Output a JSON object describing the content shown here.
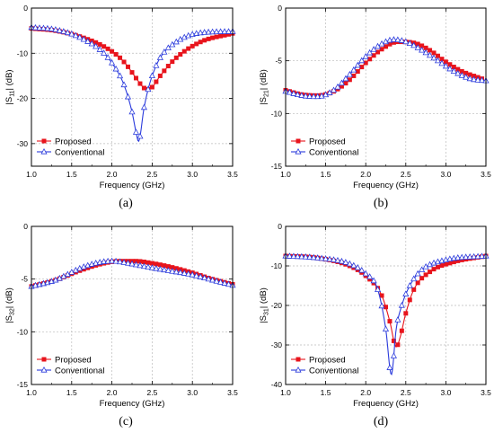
{
  "figure": {
    "panel_labels": [
      "(a)",
      "(b)",
      "(c)",
      "(d)"
    ]
  },
  "styles": {
    "proposed_color": "#e8141c",
    "conventional_color": "#2b3bdc",
    "grid_color": "#bbbbbb"
  },
  "chart_data": [
    {
      "type": "line",
      "panel": "(a)",
      "xlabel": "Frequency (GHz)",
      "ylabel_main": "|S",
      "ylabel_sub": "11",
      "ylabel_end": "| (dB)",
      "xlim": [
        1.0,
        3.5
      ],
      "ylim": [
        -35,
        0
      ],
      "xticks": [
        1.0,
        1.5,
        2.0,
        2.5,
        3.0,
        3.5
      ],
      "yticks": [
        0,
        -10,
        -20,
        -30
      ],
      "xtick_labels": [
        "1.0",
        "1.5",
        "2.0",
        "2.5",
        "3.0",
        "3.5"
      ],
      "ytick_labels": [
        "0",
        "-10",
        "-20",
        "-30"
      ],
      "grid": true,
      "legend": "bottom-left",
      "series": [
        {
          "name": "Proposed",
          "marker": "square",
          "x": [
            1.0,
            1.3,
            1.6,
            1.9,
            2.1,
            2.2,
            2.3,
            2.4,
            2.45,
            2.5,
            2.6,
            2.8,
            3.1,
            3.5
          ],
          "y": [
            -4.5,
            -5,
            -6.3,
            -8.5,
            -11,
            -13,
            -15.5,
            -17.7,
            -18,
            -17.5,
            -15,
            -11,
            -7.5,
            -5.6
          ]
        },
        {
          "name": "Conventional",
          "marker": "triangle",
          "x": [
            1.0,
            1.3,
            1.6,
            1.9,
            2.05,
            2.15,
            2.25,
            2.3,
            2.33,
            2.4,
            2.45,
            2.5,
            2.6,
            2.8,
            3.1,
            3.5
          ],
          "y": [
            -4.3,
            -4.8,
            -6.5,
            -10,
            -13.5,
            -17,
            -23,
            -27.5,
            -29.5,
            -22,
            -18,
            -15,
            -11,
            -7.5,
            -5.5,
            -5.2
          ]
        }
      ]
    },
    {
      "type": "line",
      "panel": "(b)",
      "xlabel": "Frequency (GHz)",
      "ylabel_main": "|S",
      "ylabel_sub": "21",
      "ylabel_end": "| (dB)",
      "xlim": [
        1.0,
        3.5
      ],
      "ylim": [
        -15,
        0
      ],
      "xticks": [
        1.0,
        1.5,
        2.0,
        2.5,
        3.0,
        3.5
      ],
      "yticks": [
        0,
        -5,
        -10,
        -15
      ],
      "xtick_labels": [
        "1.0",
        "1.5",
        "2.0",
        "2.5",
        "3.0",
        "3.5"
      ],
      "ytick_labels": [
        "0",
        "-5",
        "-10",
        "-15"
      ],
      "grid": true,
      "legend": "bottom-left",
      "series": [
        {
          "name": "Proposed",
          "marker": "square",
          "x": [
            1.0,
            1.2,
            1.4,
            1.6,
            1.8,
            2.0,
            2.2,
            2.4,
            2.6,
            2.8,
            3.0,
            3.2,
            3.45
          ],
          "y": [
            -7.8,
            -8.2,
            -8.3,
            -7.9,
            -6.8,
            -5.2,
            -3.9,
            -3.2,
            -3.3,
            -4.0,
            -5.1,
            -6.0,
            -6.7
          ]
        },
        {
          "name": "Conventional",
          "marker": "triangle",
          "x": [
            1.0,
            1.2,
            1.4,
            1.6,
            1.8,
            2.0,
            2.2,
            2.35,
            2.5,
            2.7,
            2.9,
            3.1,
            3.3,
            3.5
          ],
          "y": [
            -7.9,
            -8.3,
            -8.4,
            -7.8,
            -6.3,
            -4.6,
            -3.4,
            -3.0,
            -3.2,
            -4.0,
            -5.0,
            -6.0,
            -6.7,
            -6.9
          ]
        }
      ]
    },
    {
      "type": "line",
      "panel": "(c)",
      "xlabel": "Frequency (GHz)",
      "ylabel_main": "|S",
      "ylabel_sub": "32",
      "ylabel_end": "| (dB)",
      "xlim": [
        1.0,
        3.5
      ],
      "ylim": [
        -15,
        0
      ],
      "xticks": [
        1.0,
        1.5,
        2.0,
        2.5,
        3.0,
        3.5
      ],
      "yticks": [
        0,
        -5,
        -10,
        -15
      ],
      "xtick_labels": [
        "1.0",
        "1.5",
        "2.0",
        "2.5",
        "3.0",
        "3.5"
      ],
      "ytick_labels": [
        "0",
        "-5",
        "-10",
        "-15"
      ],
      "grid": true,
      "legend": "bottom-left",
      "series": [
        {
          "name": "Proposed",
          "marker": "square",
          "x": [
            1.0,
            1.3,
            1.6,
            1.9,
            2.1,
            2.3,
            2.5,
            2.7,
            3.0,
            3.2,
            3.5
          ],
          "y": [
            -5.7,
            -5.1,
            -4.2,
            -3.5,
            -3.3,
            -3.3,
            -3.5,
            -3.8,
            -4.4,
            -4.9,
            -5.5
          ]
        },
        {
          "name": "Conventional",
          "marker": "triangle",
          "x": [
            1.0,
            1.3,
            1.6,
            1.8,
            2.0,
            2.2,
            2.4,
            2.7,
            3.0,
            3.2,
            3.5
          ],
          "y": [
            -5.7,
            -5.1,
            -4.0,
            -3.5,
            -3.3,
            -3.5,
            -3.8,
            -4.2,
            -4.6,
            -5.0,
            -5.6
          ]
        }
      ]
    },
    {
      "type": "line",
      "panel": "(d)",
      "xlabel": "Frequency (GHz)",
      "ylabel_main": "|S",
      "ylabel_sub": "31",
      "ylabel_end": "| (dB)",
      "xlim": [
        1.0,
        3.5
      ],
      "ylim": [
        -40,
        0
      ],
      "xticks": [
        1.0,
        1.5,
        2.0,
        2.5,
        3.0,
        3.5
      ],
      "yticks": [
        0,
        -10,
        -20,
        -30,
        -40
      ],
      "xtick_labels": [
        "1.0",
        "1.5",
        "2.0",
        "2.5",
        "3.0",
        "3.5"
      ],
      "ytick_labels": [
        "0",
        "-10",
        "-20",
        "-30",
        "-40"
      ],
      "grid": true,
      "legend": "bottom-left",
      "series": [
        {
          "name": "Proposed",
          "marker": "square",
          "x": [
            1.0,
            1.4,
            1.8,
            2.0,
            2.2,
            2.3,
            2.38,
            2.43,
            2.5,
            2.6,
            2.8,
            3.1,
            3.5
          ],
          "y": [
            -7.5,
            -8,
            -10,
            -12.5,
            -17.5,
            -24,
            -30.5,
            -28,
            -22,
            -16,
            -11.5,
            -9,
            -7.5
          ]
        },
        {
          "name": "Conventional",
          "marker": "triangle",
          "x": [
            1.0,
            1.4,
            1.8,
            2.0,
            2.15,
            2.25,
            2.32,
            2.38,
            2.45,
            2.55,
            2.7,
            3.0,
            3.5
          ],
          "y": [
            -7.5,
            -8,
            -9.5,
            -12,
            -16,
            -26,
            -37.5,
            -26,
            -20,
            -15,
            -11,
            -8.5,
            -7.5
          ]
        }
      ]
    }
  ]
}
